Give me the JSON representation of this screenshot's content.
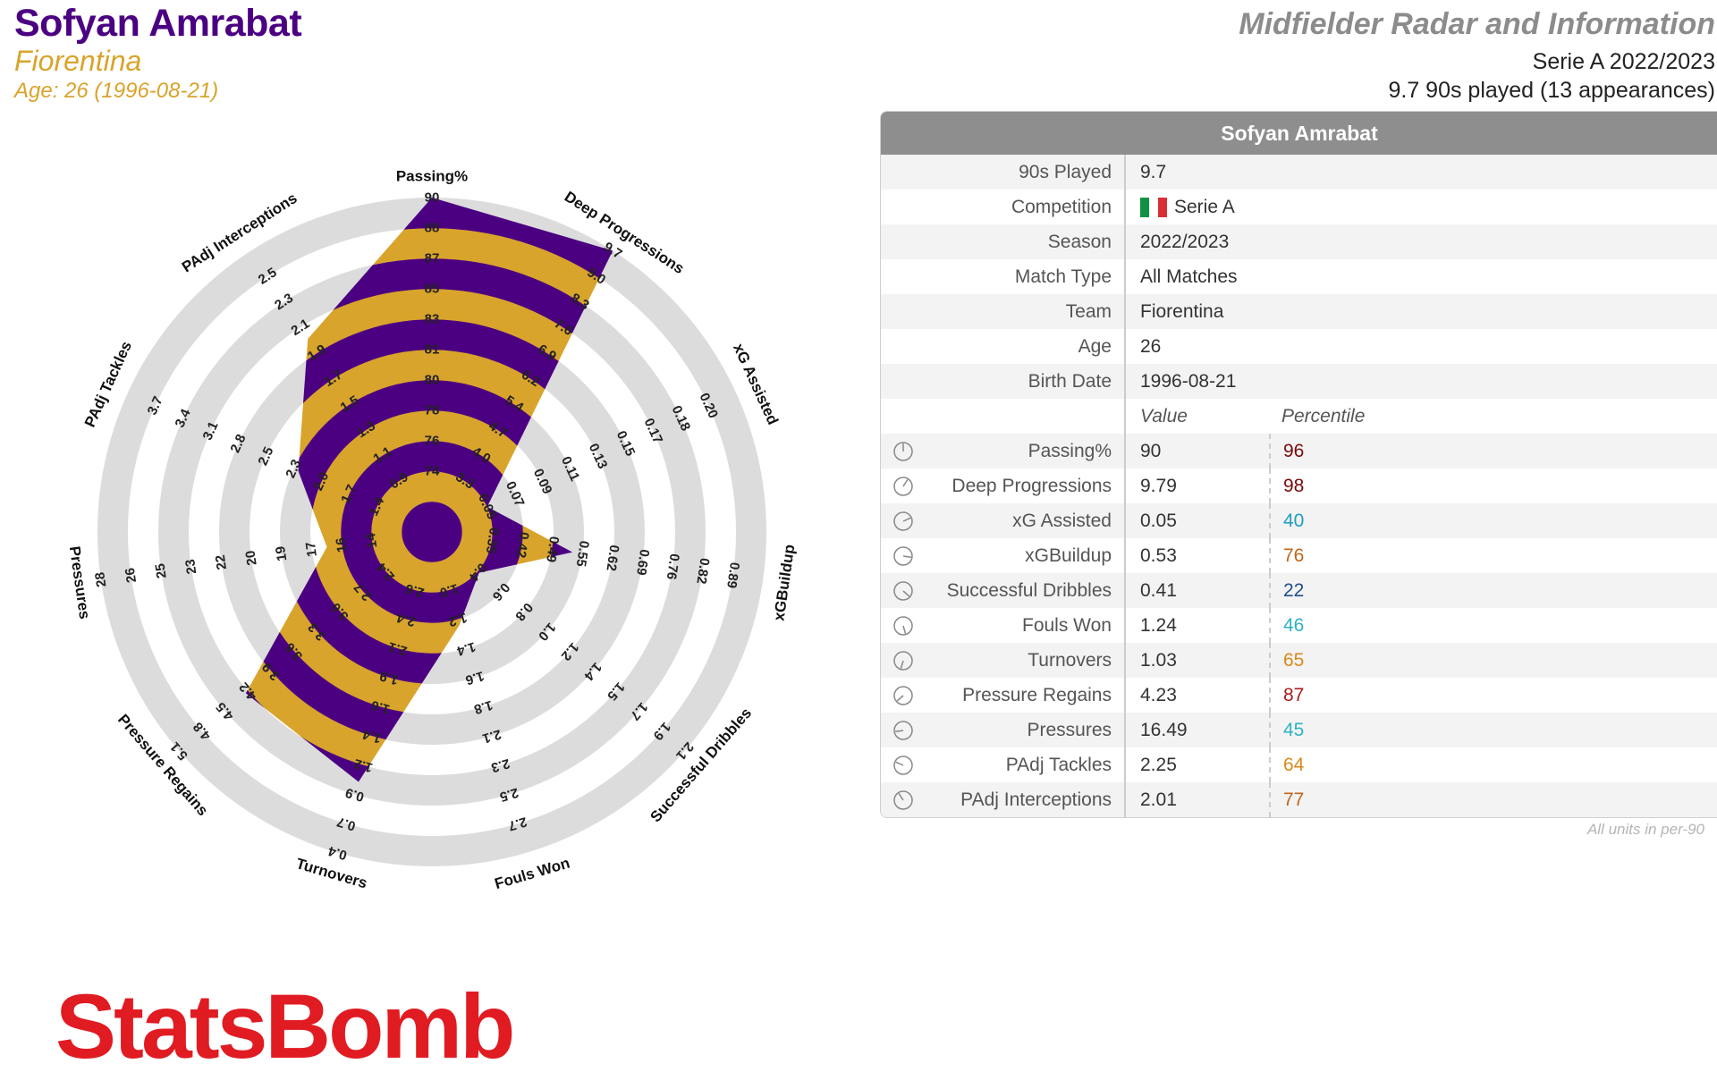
{
  "header": {
    "player_name": "Sofyan Amrabat",
    "team": "Fiorentina",
    "age_line": "Age: 26 (1996-08-21)",
    "report_title": "Midfielder Radar and Information",
    "season_line": "Serie A 2022/2023",
    "played_line": "9.7 90s played (13 appearances)"
  },
  "colors": {
    "purple": "#4b0082",
    "gold": "#d8a42b",
    "ring": "#dcdcdc",
    "logo_red": "#e11b22"
  },
  "chart_data": {
    "type": "radar",
    "metrics": [
      {
        "name": "Passing%",
        "value": 90,
        "ticks": [
          "74",
          "76",
          "78",
          "80",
          "81",
          "83",
          "85",
          "87",
          "88",
          "90"
        ]
      },
      {
        "name": "Deep Progressions",
        "value": 9.79,
        "ticks": [
          "3.3",
          "4.0",
          "4.7",
          "5.4",
          "6.2",
          "6.9",
          "7.6",
          "8.3",
          "9.0",
          "9.7"
        ]
      },
      {
        "name": "xG Assisted",
        "value": 0.05,
        "ticks": [
          "0.05",
          "0.07",
          "0.09",
          "0.11",
          "0.13",
          "0.15",
          "0.17",
          "0.18",
          "0.20"
        ]
      },
      {
        "name": "xGBuildup",
        "value": 0.53,
        "ticks": [
          "0.35",
          "0.42",
          "0.49",
          "0.55",
          "0.62",
          "0.69",
          "0.76",
          "0.82",
          "0.89"
        ]
      },
      {
        "name": "Successful Dribbles",
        "value": 0.41,
        "ticks": [
          "0.4",
          "0.6",
          "0.8",
          "1.0",
          "1.2",
          "1.4",
          "1.5",
          "1.7",
          "1.9",
          "2.1"
        ]
      },
      {
        "name": "Fouls Won",
        "value": 1.24,
        "ticks": [
          "1.0",
          "1.2",
          "1.4",
          "1.6",
          "1.8",
          "2.1",
          "2.3",
          "2.5",
          "2.7"
        ]
      },
      {
        "name": "Turnovers",
        "value": 1.03,
        "ticks": [
          "2.6",
          "2.4",
          "2.1",
          "1.9",
          "1.6",
          "1.4",
          "1.2",
          "0.9",
          "0.7",
          "0.4"
        ]
      },
      {
        "name": "Pressure Regains",
        "value": 4.23,
        "ticks": [
          "2.4",
          "2.7",
          "3.0",
          "3.3",
          "3.6",
          "3.9",
          "4.2",
          "4.5",
          "4.8",
          "5.1"
        ]
      },
      {
        "name": "Pressures",
        "value": 16.49,
        "ticks": [
          "14",
          "16",
          "17",
          "19",
          "20",
          "22",
          "23",
          "25",
          "26",
          "28"
        ]
      },
      {
        "name": "PAdj Tackles",
        "value": 2.25,
        "ticks": [
          "1.4",
          "1.7",
          "2.0",
          "2.3",
          "2.5",
          "2.8",
          "3.1",
          "3.4",
          "3.7"
        ]
      },
      {
        "name": "PAdj Interceptions",
        "value": 2.01,
        "ticks": [
          "0.9",
          "1.1",
          "1.3",
          "1.5",
          "1.7",
          "1.9",
          "2.1",
          "2.3",
          "2.5"
        ]
      }
    ]
  },
  "table": {
    "title": "Sofyan Amrabat",
    "info_rows": [
      {
        "label": "90s Played",
        "value": "9.7"
      },
      {
        "label": "Competition",
        "value": "Serie A"
      },
      {
        "label": "Season",
        "value": "2022/2023"
      },
      {
        "label": "Match Type",
        "value": "All Matches"
      },
      {
        "label": "Team",
        "value": "Fiorentina"
      },
      {
        "label": "Age",
        "value": "26"
      },
      {
        "label": "Birth Date",
        "value": "1996-08-21"
      }
    ],
    "value_header": "Value",
    "percentile_header": "Percentile",
    "metric_rows": [
      {
        "label": "Passing%",
        "value": "90",
        "percentile": "96",
        "pct_color": "#7a0c0c"
      },
      {
        "label": "Deep Progressions",
        "value": "9.79",
        "percentile": "98",
        "pct_color": "#7a0c0c"
      },
      {
        "label": "xG Assisted",
        "value": "0.05",
        "percentile": "40",
        "pct_color": "#1f9dc4"
      },
      {
        "label": "xGBuildup",
        "value": "0.53",
        "percentile": "76",
        "pct_color": "#c2661a"
      },
      {
        "label": "Successful Dribbles",
        "value": "0.41",
        "percentile": "22",
        "pct_color": "#1f4f8c"
      },
      {
        "label": "Fouls Won",
        "value": "1.24",
        "percentile": "46",
        "pct_color": "#2fb3c2"
      },
      {
        "label": "Turnovers",
        "value": "1.03",
        "percentile": "65",
        "pct_color": "#d88a1a"
      },
      {
        "label": "Pressure Regains",
        "value": "4.23",
        "percentile": "87",
        "pct_color": "#a81e1e"
      },
      {
        "label": "Pressures",
        "value": "16.49",
        "percentile": "45",
        "pct_color": "#2fb3c2"
      },
      {
        "label": "PAdj Tackles",
        "value": "2.25",
        "percentile": "64",
        "pct_color": "#d88a1a"
      },
      {
        "label": "PAdj Interceptions",
        "value": "2.01",
        "percentile": "77",
        "pct_color": "#c2661a"
      }
    ],
    "flag_colors": [
      "#119143",
      "#ffffff",
      "#d82f36"
    ]
  },
  "units_note": "All units in per-90",
  "logo_text": "StatsBomb"
}
